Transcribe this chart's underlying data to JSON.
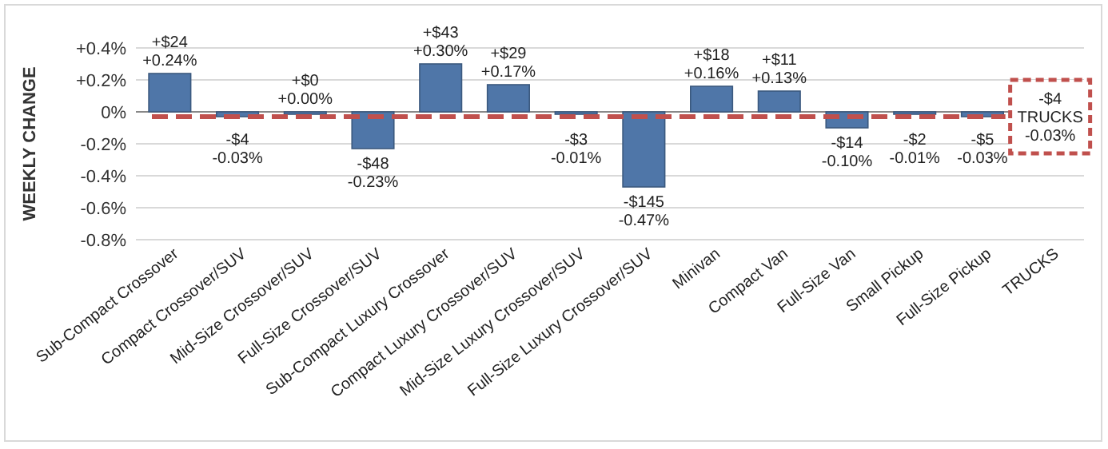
{
  "chart_data": {
    "type": "bar",
    "ylabel": "WEEKLY CHANGE",
    "categories": [
      "Sub-Compact Crossover",
      "Compact Crossover/SUV",
      "Mid-Size Crossover/SUV",
      "Full-Size Crossover/SUV",
      "Sub-Compact Luxury Crossover",
      "Compact Luxury Crossover/SUV",
      "Mid-Size Luxury Crossover/SUV",
      "Full-Size Luxury Crossover/SUV",
      "Minivan",
      "Compact Van",
      "Full-Size Van",
      "Small Pickup",
      "Full-Size Pickup",
      "TRUCKS"
    ],
    "values": [
      0.24,
      -0.03,
      0,
      -0.23,
      0.3,
      0.17,
      -0.01,
      -0.47,
      0.16,
      0.13,
      -0.1,
      -0.01,
      -0.03,
      null
    ],
    "value_labels": [
      "+$24\n+0.24%",
      "-$4\n-0.03%",
      "+$0\n+0.00%",
      "-$48\n-0.23%",
      "+$43\n+0.30%",
      "+$29\n+0.17%",
      "-$3\n-0.01%",
      "-$145\n-0.47%",
      "+$18\n+0.16%",
      "+$11\n+0.13%",
      "-$14\n-0.10%",
      "-$2\n-0.01%",
      "-$5\n-0.03%",
      null
    ],
    "color": "#4f76a8",
    "ylim": [
      -0.8,
      0.4
    ],
    "yticks": [
      {
        "value": 0.4,
        "label": "+0.4%"
      },
      {
        "value": 0.2,
        "label": "+0.2%"
      },
      {
        "value": 0,
        "label": "0%"
      },
      {
        "value": -0.2,
        "label": "-0.2%"
      },
      {
        "value": -0.4,
        "label": "-0.4%"
      },
      {
        "value": -0.6,
        "label": "-0.6%"
      },
      {
        "value": -0.8,
        "label": "-0.8%"
      }
    ],
    "grid": "y",
    "ref_lines": [
      {
        "axis": "y",
        "value": -0.03,
        "label": "-$4\nTRUCKS\n-0.03%",
        "color": "#c0504d",
        "line_style": "dashed"
      }
    ]
  }
}
